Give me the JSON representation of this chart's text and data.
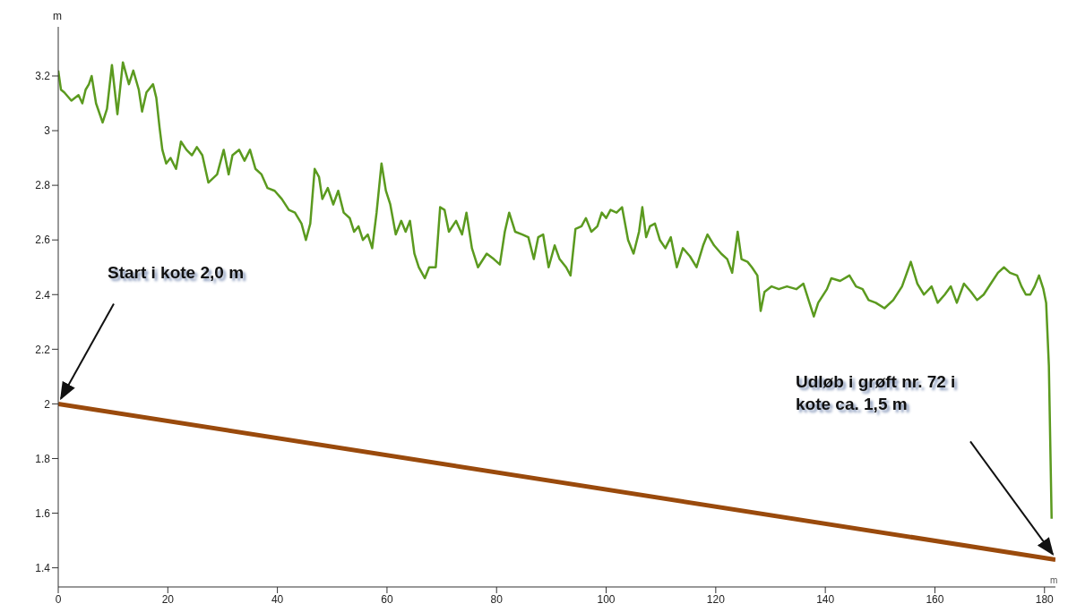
{
  "chart_data": {
    "type": "line",
    "xlabel": "m",
    "ylabel": "m",
    "xlim": [
      0,
      182
    ],
    "xticks": [
      0,
      20,
      40,
      60,
      80,
      100,
      120,
      140,
      160,
      180
    ],
    "ylim": [
      1.33,
      3.38
    ],
    "yticks": [
      1.4,
      1.6,
      1.8,
      2,
      2.2,
      2.4,
      2.6,
      2.8,
      3,
      3.2
    ],
    "grid": false,
    "marker": "none",
    "line_style": "solid",
    "series": [
      {
        "color": "#5b9a1f",
        "x": [
          0,
          0.5,
          1.1,
          2.4,
          3.7,
          4.4,
          5,
          5.6,
          6.1,
          6.9,
          8.1,
          8.9,
          9.8,
          10.8,
          11.8,
          12.9,
          13.7,
          14.7,
          15.3,
          16.1,
          17.3,
          17.9,
          18.5,
          19,
          19.7,
          20.5,
          21.5,
          22.4,
          23.4,
          24.4,
          25.3,
          26.3,
          27.4,
          29,
          30.2,
          31.1,
          31.8,
          33,
          34,
          35,
          36,
          37.1,
          38.2,
          39.5,
          40.8,
          42.1,
          43.2,
          44.4,
          45.2,
          46,
          46.8,
          47.6,
          48.2,
          49.2,
          50.2,
          51.1,
          52.1,
          53.2,
          54,
          54.8,
          55.6,
          56.5,
          57.3,
          58.1,
          59,
          59.8,
          60.6,
          61.6,
          62.6,
          63.4,
          64.2,
          65,
          65.8,
          66.9,
          67.7,
          68.9,
          69.7,
          70.5,
          71.3,
          72.6,
          73.7,
          74.5,
          75.5,
          76.6,
          78.2,
          79.5,
          80.6,
          81.5,
          82.3,
          83.4,
          84.7,
          85.8,
          86.8,
          87.6,
          88.5,
          89.5,
          90.6,
          91.5,
          92.7,
          93.5,
          94.4,
          95.5,
          96.3,
          97.3,
          98.4,
          99.2,
          100,
          100.8,
          101.9,
          102.9,
          104,
          105,
          106,
          106.6,
          107.3,
          108,
          108.9,
          109.8,
          110.8,
          111.8,
          112.9,
          114,
          115.3,
          116.5,
          117.7,
          118.5,
          119.7,
          121,
          122.1,
          123,
          124,
          124.7,
          125.8,
          126.6,
          127.6,
          128.2,
          128.9,
          130.2,
          131.5,
          133,
          134.7,
          136,
          137.1,
          137.9,
          138.7,
          140.3,
          141.1,
          142.7,
          144.4,
          145.6,
          146.8,
          147.9,
          149.2,
          150.8,
          152.4,
          154,
          155.6,
          156.8,
          158,
          159.4,
          160.5,
          161.8,
          162.9,
          164,
          165.3,
          166.6,
          167.7,
          168.9,
          170.2,
          171.5,
          172.6,
          173.7,
          175,
          175.8,
          176.6,
          177.4,
          178.2,
          179,
          179.8,
          180.3,
          180.8,
          181.3
        ],
        "values": [
          3.22,
          3.15,
          3.14,
          3.11,
          3.13,
          3.1,
          3.15,
          3.17,
          3.2,
          3.1,
          3.03,
          3.08,
          3.24,
          3.06,
          3.25,
          3.17,
          3.22,
          3.15,
          3.07,
          3.14,
          3.17,
          3.12,
          3.01,
          2.93,
          2.88,
          2.9,
          2.86,
          2.96,
          2.93,
          2.91,
          2.94,
          2.91,
          2.81,
          2.84,
          2.93,
          2.84,
          2.91,
          2.93,
          2.89,
          2.93,
          2.86,
          2.84,
          2.79,
          2.78,
          2.75,
          2.71,
          2.7,
          2.66,
          2.6,
          2.66,
          2.86,
          2.83,
          2.75,
          2.79,
          2.73,
          2.78,
          2.7,
          2.68,
          2.63,
          2.65,
          2.6,
          2.62,
          2.57,
          2.7,
          2.88,
          2.78,
          2.73,
          2.62,
          2.67,
          2.63,
          2.67,
          2.55,
          2.5,
          2.46,
          2.5,
          2.5,
          2.72,
          2.71,
          2.63,
          2.67,
          2.62,
          2.7,
          2.57,
          2.5,
          2.55,
          2.53,
          2.51,
          2.63,
          2.7,
          2.63,
          2.62,
          2.61,
          2.53,
          2.61,
          2.62,
          2.5,
          2.58,
          2.53,
          2.5,
          2.47,
          2.64,
          2.65,
          2.68,
          2.63,
          2.65,
          2.7,
          2.68,
          2.71,
          2.7,
          2.72,
          2.6,
          2.55,
          2.63,
          2.72,
          2.61,
          2.65,
          2.66,
          2.6,
          2.57,
          2.61,
          2.5,
          2.57,
          2.54,
          2.5,
          2.58,
          2.62,
          2.58,
          2.55,
          2.53,
          2.48,
          2.63,
          2.53,
          2.52,
          2.5,
          2.47,
          2.34,
          2.41,
          2.43,
          2.42,
          2.43,
          2.42,
          2.44,
          2.37,
          2.32,
          2.37,
          2.42,
          2.46,
          2.45,
          2.47,
          2.43,
          2.42,
          2.38,
          2.37,
          2.35,
          2.38,
          2.43,
          2.52,
          2.44,
          2.4,
          2.43,
          2.37,
          2.4,
          2.43,
          2.37,
          2.44,
          2.41,
          2.38,
          2.4,
          2.44,
          2.48,
          2.5,
          2.48,
          2.47,
          2.43,
          2.4,
          2.4,
          2.43,
          2.47,
          2.42,
          2.37,
          2.14,
          1.58
        ]
      },
      {
        "color": "#9a4a0c",
        "x": [
          0,
          182
        ],
        "values": [
          2.0,
          1.43
        ]
      }
    ],
    "annotations": [
      {
        "text": "Start i kote 2,0 m",
        "x": 0,
        "y": 2.0
      },
      "Udløb i grøft nr. 72 i kote ca. 1,5 m"
    ]
  }
}
